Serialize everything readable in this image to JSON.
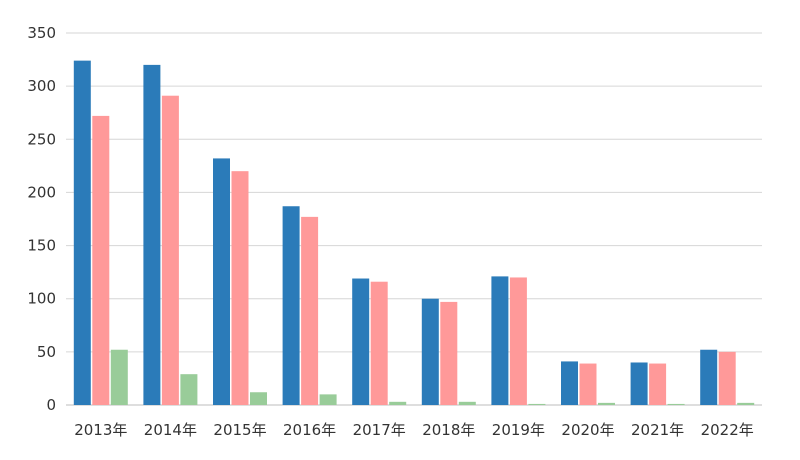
{
  "chart_data": {
    "type": "bar",
    "title": "",
    "xlabel": "",
    "ylabel": "",
    "categories": [
      "2013年",
      "2014年",
      "2015年",
      "2016年",
      "2017年",
      "2018年",
      "2019年",
      "2020年",
      "2021年",
      "2022年"
    ],
    "series": [
      {
        "color": "#2b7bb9",
        "values": [
          324,
          320,
          232,
          187,
          119,
          100,
          121,
          41,
          40,
          52
        ]
      },
      {
        "color": "#ff9999",
        "values": [
          272,
          291,
          220,
          177,
          116,
          97,
          120,
          39,
          39,
          50
        ]
      },
      {
        "color": "#99cc99",
        "values": [
          52,
          29,
          12,
          10,
          3,
          3,
          1,
          2,
          1,
          2
        ]
      }
    ],
    "ylim": [
      0,
      350
    ],
    "yticks": [
      0,
      50,
      100,
      150,
      200,
      250,
      300,
      350
    ],
    "grid": true,
    "legend": "none"
  }
}
